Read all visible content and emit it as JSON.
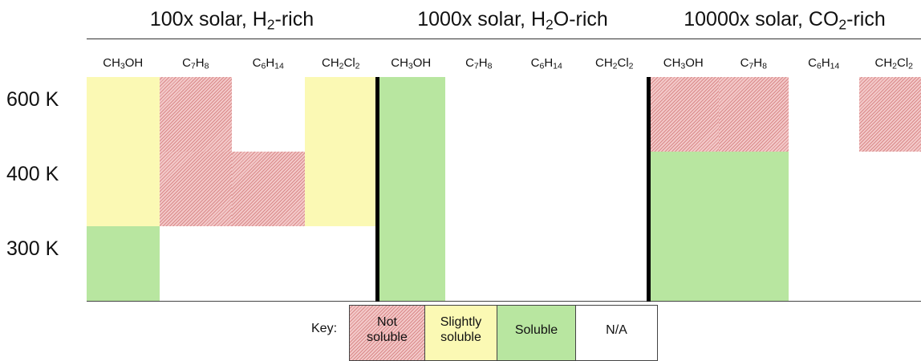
{
  "groups": [
    {
      "title": "100x solar, H2-rich"
    },
    {
      "title": "1000x solar, H2O-rich"
    },
    {
      "title": "10000x solar, CO2-rich"
    }
  ],
  "columns": [
    "CH3OH",
    "C7H8",
    "C6H14",
    "CH2Cl2",
    "CH3OH",
    "C7H8",
    "C6H14",
    "CH2Cl2",
    "CH3OH",
    "C7H8",
    "C6H14",
    "CH2Cl2"
  ],
  "rows": [
    {
      "label": "600 K",
      "cells": [
        1,
        0,
        3,
        1,
        2,
        3,
        3,
        3,
        0,
        0,
        3,
        0
      ]
    },
    {
      "label": "400 K",
      "cells": [
        1,
        0,
        0,
        1,
        2,
        3,
        3,
        3,
        2,
        2,
        3,
        3
      ]
    },
    {
      "label": "300 K",
      "cells": [
        2,
        3,
        3,
        3,
        2,
        3,
        3,
        3,
        2,
        2,
        3,
        3
      ]
    }
  ],
  "key": {
    "title": "Key:",
    "entries": [
      {
        "label": "Not soluble",
        "color": "#f3c9c9",
        "hatch": true
      },
      {
        "label": "Slightly soluble",
        "color": "#fbf9b4",
        "hatch": false
      },
      {
        "label": "Soluble",
        "color": "#b8e6a0",
        "hatch": false
      },
      {
        "label": "N/A",
        "color": "#ffffff",
        "hatch": false
      }
    ]
  }
}
